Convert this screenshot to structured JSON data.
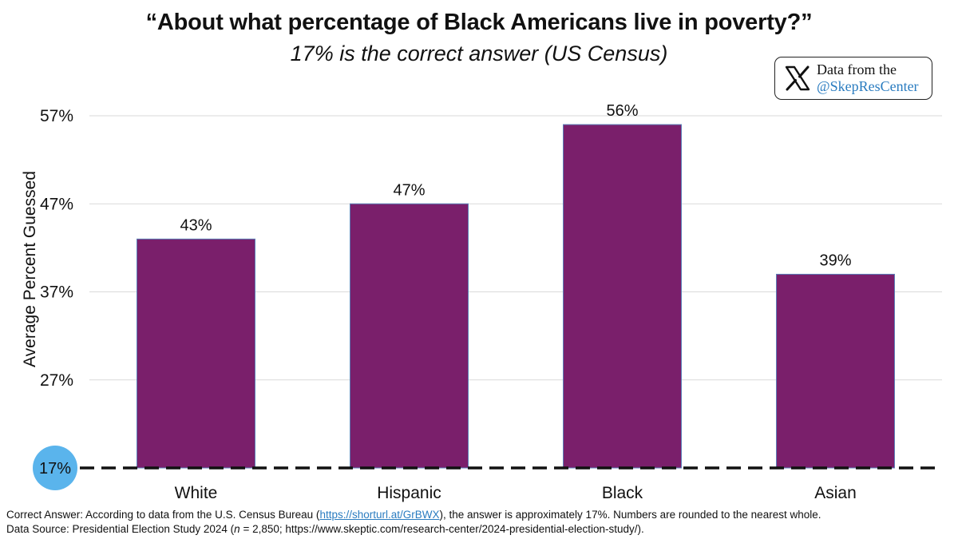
{
  "chart_data": {
    "type": "bar",
    "title": "“About what percentage of Black Americans live in poverty?”",
    "subtitle": "17% is the correct answer (US Census)",
    "categories": [
      "White",
      "Hispanic",
      "Black",
      "Asian"
    ],
    "values": [
      43,
      47,
      56,
      39
    ],
    "data_labels": [
      "43%",
      "47%",
      "56%",
      "39%"
    ],
    "ylabel": "Average Percent Guessed",
    "xlabel": "",
    "ylim": [
      17,
      57
    ],
    "yticks": [
      27,
      37,
      47,
      57
    ],
    "ytick_labels": [
      "27%",
      "37%",
      "47%",
      "57%"
    ],
    "reference_line": {
      "value": 17,
      "label": "17%",
      "style": "dashed"
    },
    "grid": true,
    "bar_color": "#7a1f6b",
    "bar_border_color": "#5b7fb8",
    "reference_marker_color": "#5ab4ec"
  },
  "badge": {
    "icon": "x-logo-icon",
    "line1": "Data from the",
    "line2": "@SkepResCenter"
  },
  "footer": {
    "line1_prefix": "Correct Answer: According to data from the U.S. Census Bureau (",
    "line1_link": "https://shorturl.at/GrBWX",
    "line1_suffix": "), the answer is approximately 17%. Numbers are rounded to the nearest whole.",
    "line2_prefix": "Data Source: Presidential Election Study 2024 (",
    "line2_n": "n",
    "line2_suffix": " = 2,850; https://www.skeptic.com/research-center/2024-presidential-election-study/)."
  }
}
